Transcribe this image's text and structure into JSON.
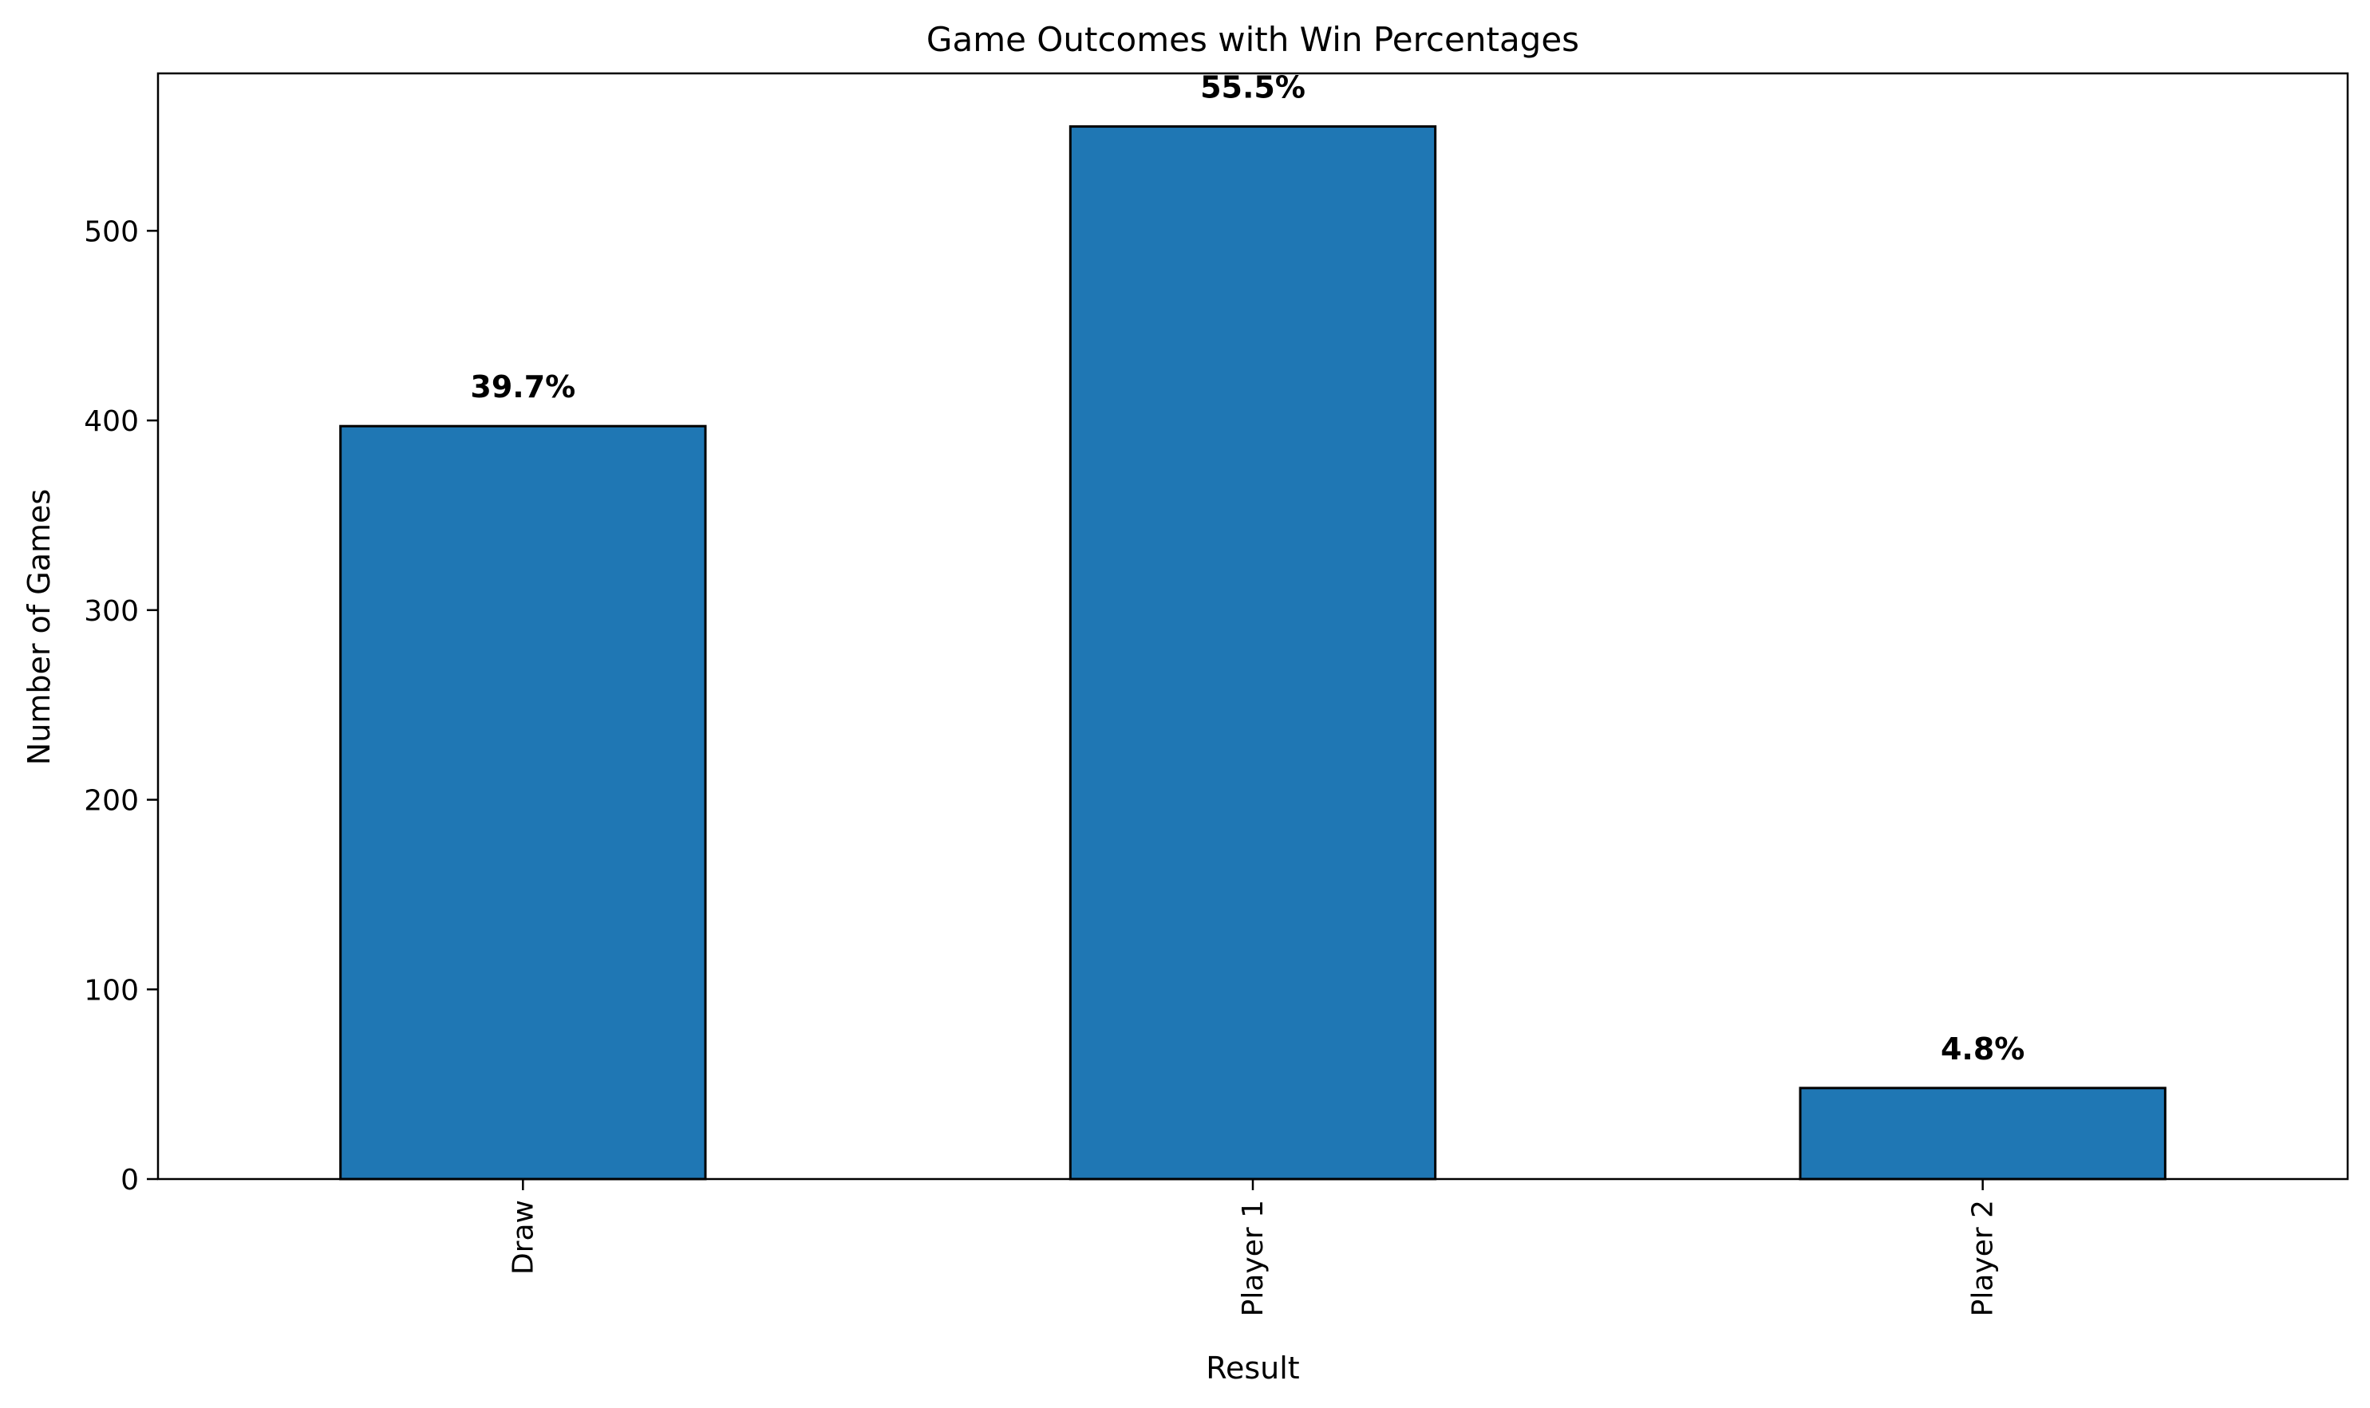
{
  "chart_data": {
    "type": "bar",
    "title": "Game Outcomes with Win Percentages",
    "xlabel": "Result",
    "ylabel": "Number of Games",
    "categories": [
      "Draw",
      "Player 1",
      "Player 2"
    ],
    "values": [
      397,
      555,
      48
    ],
    "data_labels": [
      "39.7%",
      "55.5%",
      "4.8%"
    ],
    "ylim": [
      0,
      583
    ],
    "yticks": [
      0,
      100,
      200,
      300,
      400,
      500
    ],
    "grid": false,
    "legend": "none",
    "bar_color": "#1f77b4",
    "edge_color": "#000000",
    "xtick_rotation": "vertical"
  }
}
